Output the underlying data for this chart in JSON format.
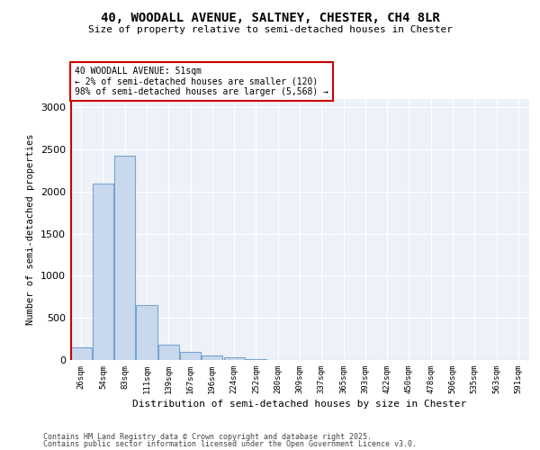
{
  "title1": "40, WOODALL AVENUE, SALTNEY, CHESTER, CH4 8LR",
  "title2": "Size of property relative to semi-detached houses in Chester",
  "xlabel": "Distribution of semi-detached houses by size in Chester",
  "ylabel": "Number of semi-detached properties",
  "annotation_title": "40 WOODALL AVENUE: 51sqm",
  "annotation_line1": "← 2% of semi-detached houses are smaller (120)",
  "annotation_line2": "98% of semi-detached houses are larger (5,568) →",
  "footer1": "Contains HM Land Registry data © Crown copyright and database right 2025.",
  "footer2": "Contains public sector information licensed under the Open Government Licence v3.0.",
  "bar_color": "#c9d9ed",
  "bar_edge_color": "#7ba3cc",
  "marker_color": "#cc0000",
  "categories": [
    "26sqm",
    "54sqm",
    "83sqm",
    "111sqm",
    "139sqm",
    "167sqm",
    "196sqm",
    "224sqm",
    "252sqm",
    "280sqm",
    "309sqm",
    "337sqm",
    "365sqm",
    "393sqm",
    "422sqm",
    "450sqm",
    "478sqm",
    "506sqm",
    "535sqm",
    "563sqm",
    "591sqm"
  ],
  "values": [
    155,
    2090,
    2430,
    655,
    185,
    95,
    55,
    35,
    15,
    0,
    0,
    0,
    0,
    0,
    0,
    0,
    0,
    0,
    0,
    0,
    0
  ],
  "ylim": [
    0,
    3100
  ],
  "yticks": [
    0,
    500,
    1000,
    1500,
    2000,
    2500,
    3000
  ],
  "background_color": "#edf1f8"
}
